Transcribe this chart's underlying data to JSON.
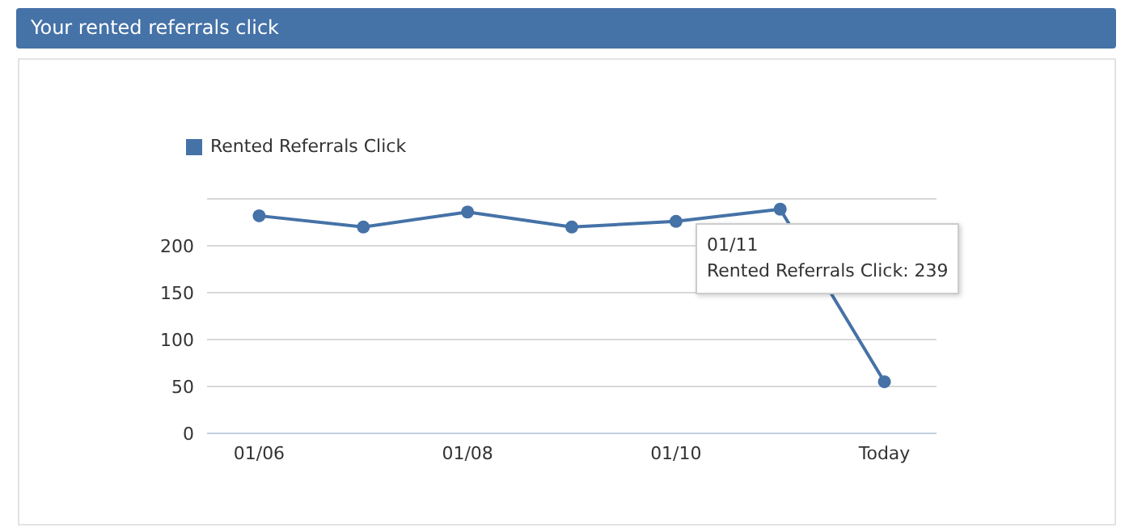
{
  "chart_data": {
    "type": "line",
    "title": "Your rented referrals click",
    "categories": [
      "01/06",
      null,
      "01/08",
      null,
      "01/10",
      null,
      "Today"
    ],
    "series": [
      {
        "name": "Rented Referrals Click",
        "color": "#4572a7",
        "values": [
          232,
          220,
          236,
          220,
          226,
          239,
          55
        ]
      }
    ],
    "ylim": [
      0,
      250
    ],
    "yticks": [
      0,
      50,
      100,
      150,
      200
    ],
    "grid": "y",
    "legend": "top left",
    "marker": "circle",
    "line_style": "solid",
    "annotations": [
      "01/11\nRented Referrals Click: 239"
    ]
  }
}
